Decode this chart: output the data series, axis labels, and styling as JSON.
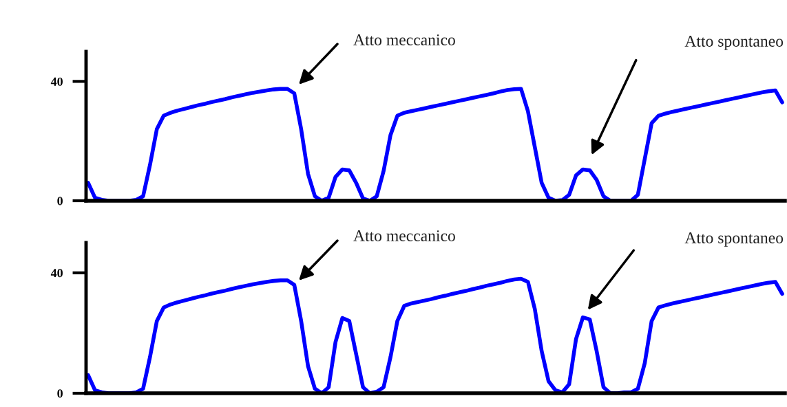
{
  "chart_data": [
    {
      "type": "line",
      "ylim": [
        0,
        50
      ],
      "yticks": [
        0,
        40
      ],
      "tick_labels": "y",
      "annotations": [
        "Atto meccanico",
        "Atto spontaneo"
      ],
      "categories": [
        null,
        null,
        null,
        null,
        null,
        null,
        null,
        null,
        null,
        null,
        null,
        null,
        null,
        null,
        null,
        null,
        null,
        null,
        null,
        null,
        null,
        null,
        null,
        null,
        null,
        null,
        null,
        null,
        null,
        null,
        null,
        null,
        null,
        null,
        null,
        null,
        null,
        null,
        null,
        null,
        null,
        null,
        null,
        null,
        null,
        null,
        null,
        null,
        null,
        null,
        null,
        null,
        null,
        null,
        null,
        null,
        null,
        null,
        null,
        null,
        null,
        null,
        null,
        null,
        null,
        null,
        null,
        null,
        null,
        null,
        null,
        null,
        null,
        null,
        null,
        null,
        null,
        null,
        null,
        null,
        null,
        null,
        null,
        null,
        null,
        null,
        null,
        null,
        null,
        null,
        null,
        null,
        null,
        null,
        null,
        null,
        null,
        null,
        null,
        null,
        null,
        null
      ],
      "series": [
        {
          "color": "#0000ff",
          "values": [
            6,
            1,
            0.3,
            0,
            0,
            0,
            0,
            0.3,
            1.5,
            12,
            24,
            28.5,
            29.5,
            30.2,
            30.8,
            31.4,
            32,
            32.5,
            33.1,
            33.6,
            34.1,
            34.7,
            35.2,
            35.7,
            36.2,
            36.6,
            37,
            37.3,
            37.5,
            37.5,
            36,
            24,
            9,
            1.5,
            0,
            1,
            8,
            10.5,
            10.2,
            6,
            0.8,
            0,
            1.5,
            10,
            22,
            28.5,
            29.5,
            30,
            30.5,
            31,
            31.5,
            32,
            32.5,
            33,
            33.5,
            34,
            34.5,
            35,
            35.5,
            36,
            36.6,
            37.1,
            37.4,
            37.5,
            30,
            18,
            6,
            1,
            0,
            0.2,
            2,
            8.5,
            10.5,
            10.2,
            7,
            1.5,
            0,
            0,
            0,
            0,
            2,
            14,
            26,
            28.5,
            29.2,
            29.8,
            30.3,
            30.8,
            31.3,
            31.8,
            32.3,
            32.8,
            33.3,
            33.8,
            34.3,
            34.8,
            35.3,
            35.8,
            36.3,
            36.7,
            37,
            33
          ]
        }
      ]
    },
    {
      "type": "line",
      "ylim": [
        0,
        50
      ],
      "yticks": [
        0,
        40
      ],
      "tick_labels": "y",
      "annotations": [
        "Atto meccanico",
        "Atto spontaneo"
      ],
      "categories": [
        null,
        null,
        null,
        null,
        null,
        null,
        null,
        null,
        null,
        null,
        null,
        null,
        null,
        null,
        null,
        null,
        null,
        null,
        null,
        null,
        null,
        null,
        null,
        null,
        null,
        null,
        null,
        null,
        null,
        null,
        null,
        null,
        null,
        null,
        null,
        null,
        null,
        null,
        null,
        null,
        null,
        null,
        null,
        null,
        null,
        null,
        null,
        null,
        null,
        null,
        null,
        null,
        null,
        null,
        null,
        null,
        null,
        null,
        null,
        null,
        null,
        null,
        null,
        null,
        null,
        null,
        null,
        null,
        null,
        null,
        null,
        null,
        null,
        null,
        null,
        null,
        null,
        null,
        null,
        null,
        null,
        null,
        null,
        null,
        null,
        null,
        null,
        null,
        null,
        null,
        null,
        null,
        null,
        null,
        null,
        null,
        null,
        null,
        null,
        null,
        null,
        null
      ],
      "series": [
        {
          "color": "#0000ff",
          "values": [
            6,
            1,
            0.3,
            0,
            0,
            0,
            0,
            0.3,
            1.5,
            12,
            24,
            28.5,
            29.5,
            30.2,
            30.8,
            31.4,
            32,
            32.5,
            33.1,
            33.6,
            34.1,
            34.7,
            35.2,
            35.7,
            36.2,
            36.6,
            37,
            37.3,
            37.5,
            37.5,
            36,
            24,
            9,
            1.5,
            0,
            2,
            17,
            25,
            24,
            13,
            2,
            0,
            0.5,
            2,
            12,
            24,
            29,
            29.8,
            30.3,
            30.8,
            31.3,
            31.9,
            32.4,
            33,
            33.5,
            34,
            34.6,
            35.1,
            35.7,
            36.2,
            36.7,
            37.3,
            37.8,
            38,
            37,
            28,
            14,
            4,
            1,
            0.3,
            3,
            18,
            25.2,
            24.5,
            14,
            2,
            0,
            0,
            0.3,
            0.3,
            1.5,
            10,
            24,
            28.5,
            29.2,
            29.8,
            30.3,
            30.8,
            31.3,
            31.8,
            32.3,
            32.8,
            33.3,
            33.8,
            34.3,
            34.8,
            35.3,
            35.8,
            36.3,
            36.7,
            37,
            33
          ]
        }
      ]
    }
  ]
}
